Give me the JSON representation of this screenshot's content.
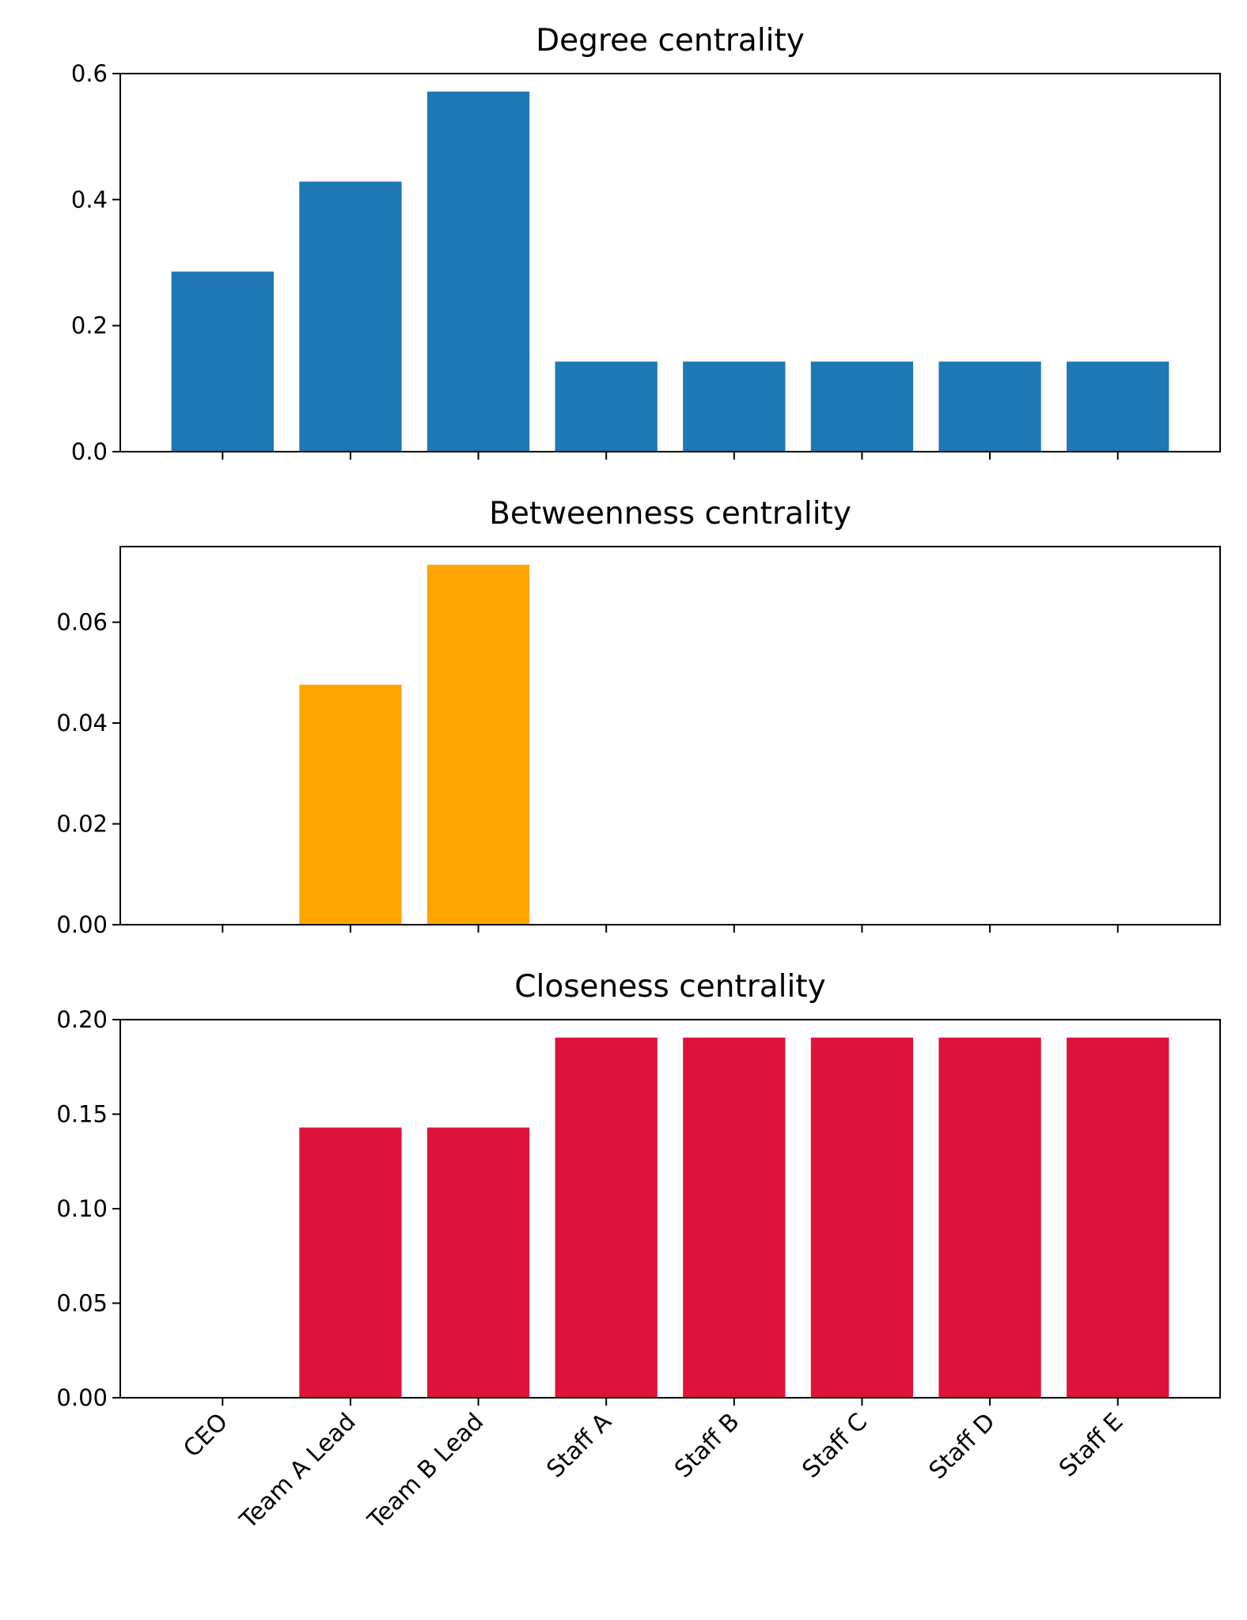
{
  "chart_data": [
    {
      "type": "bar",
      "title": "Degree centrality",
      "categories": [
        "CEO",
        "Team A Lead",
        "Team B Lead",
        "Staff A",
        "Staff B",
        "Staff C",
        "Staff D",
        "Staff E"
      ],
      "values": [
        0.2857,
        0.4286,
        0.5714,
        0.1429,
        0.1429,
        0.1429,
        0.1429,
        0.1429
      ],
      "ylim": [
        0,
        0.6
      ],
      "yticks": [
        "0.0",
        "0.2",
        "0.4",
        "0.6"
      ],
      "color": "#1f77b4",
      "grid": false,
      "show_xtick_labels": false
    },
    {
      "type": "bar",
      "title": "Betweenness centrality",
      "categories": [
        "CEO",
        "Team A Lead",
        "Team B Lead",
        "Staff A",
        "Staff B",
        "Staff C",
        "Staff D",
        "Staff E"
      ],
      "values": [
        0,
        0.0476,
        0.0714,
        0,
        0,
        0,
        0,
        0
      ],
      "ylim": [
        0,
        0.075
      ],
      "yticks": [
        "0.00",
        "0.02",
        "0.04",
        "0.06"
      ],
      "color": "#ffa500",
      "grid": false,
      "show_xtick_labels": false
    },
    {
      "type": "bar",
      "title": "Closeness centrality",
      "categories": [
        "CEO",
        "Team A Lead",
        "Team B Lead",
        "Staff A",
        "Staff B",
        "Staff C",
        "Staff D",
        "Staff E"
      ],
      "values": [
        0,
        0.1429,
        0.1429,
        0.1905,
        0.1905,
        0.1905,
        0.1905,
        0.1905
      ],
      "ylim": [
        0,
        0.2
      ],
      "yticks": [
        "0.00",
        "0.05",
        "0.10",
        "0.15",
        "0.20"
      ],
      "color": "#dc143c",
      "grid": false,
      "show_xtick_labels": true
    }
  ]
}
